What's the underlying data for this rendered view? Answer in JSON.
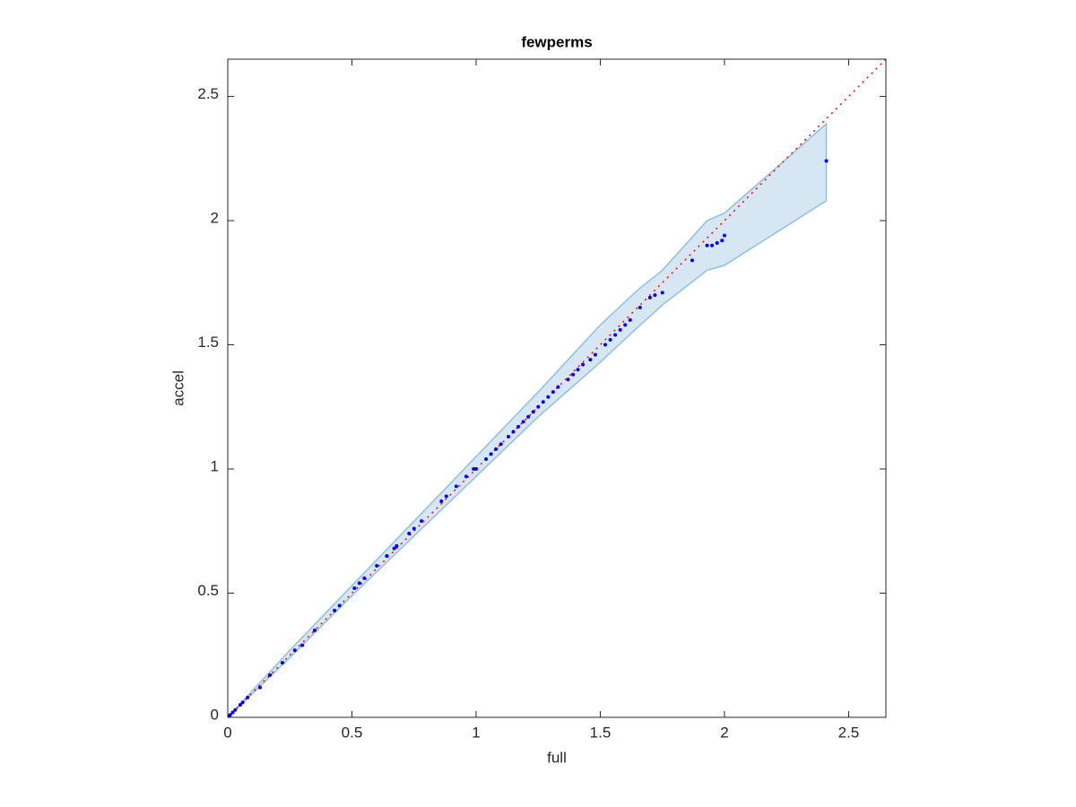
{
  "chart_data": {
    "type": "scatter",
    "title": "fewperms",
    "x_label": "full",
    "y_label": "accel",
    "xlim": [
      0,
      2.65
    ],
    "ylim": [
      0,
      2.65
    ],
    "xticks": [
      0,
      0.5,
      1,
      1.5,
      2,
      2.5
    ],
    "yticks": [
      0,
      0.5,
      1,
      1.5,
      2,
      2.5
    ],
    "band": {
      "color": "#d6e6f2",
      "edge_color": "#8fc0e0",
      "x": [
        0,
        0.25,
        0.5,
        0.75,
        1.0,
        1.25,
        1.5,
        1.65,
        1.75,
        1.93,
        2.0,
        2.41
      ],
      "upper": [
        0,
        0.27,
        0.53,
        0.79,
        1.05,
        1.31,
        1.58,
        1.72,
        1.8,
        2.0,
        2.03,
        2.39
      ],
      "lower": [
        0,
        0.24,
        0.49,
        0.73,
        0.97,
        1.21,
        1.43,
        1.57,
        1.66,
        1.8,
        1.82,
        2.08
      ]
    },
    "reference_line": {
      "color": "#ff0000",
      "x": [
        0,
        2.65
      ],
      "y": [
        0,
        2.65
      ]
    },
    "series": [
      {
        "color": "#0000ff",
        "x": [
          0.005,
          0.01,
          0.02,
          0.03,
          0.05,
          0.06,
          0.08,
          0.13,
          0.17,
          0.22,
          0.27,
          0.3,
          0.35,
          0.43,
          0.45,
          0.51,
          0.53,
          0.55,
          0.6,
          0.64,
          0.67,
          0.68,
          0.73,
          0.75,
          0.78,
          0.86,
          0.88,
          0.92,
          0.96,
          0.99,
          1.0,
          1.04,
          1.06,
          1.08,
          1.1,
          1.13,
          1.15,
          1.17,
          1.19,
          1.21,
          1.23,
          1.25,
          1.27,
          1.29,
          1.31,
          1.33,
          1.37,
          1.39,
          1.41,
          1.43,
          1.46,
          1.48,
          1.52,
          1.54,
          1.56,
          1.58,
          1.6,
          1.62,
          1.66,
          1.7,
          1.72,
          1.75,
          1.87,
          1.93,
          1.95,
          1.97,
          1.99,
          2.0,
          2.41
        ],
        "values": [
          0.005,
          0.01,
          0.02,
          0.03,
          0.05,
          0.06,
          0.08,
          0.12,
          0.17,
          0.22,
          0.27,
          0.29,
          0.35,
          0.43,
          0.45,
          0.52,
          0.54,
          0.56,
          0.61,
          0.65,
          0.68,
          0.69,
          0.74,
          0.76,
          0.79,
          0.87,
          0.89,
          0.93,
          0.97,
          1.0,
          1.0,
          1.04,
          1.06,
          1.08,
          1.1,
          1.13,
          1.15,
          1.17,
          1.19,
          1.21,
          1.23,
          1.25,
          1.27,
          1.29,
          1.31,
          1.33,
          1.36,
          1.38,
          1.4,
          1.42,
          1.44,
          1.46,
          1.5,
          1.52,
          1.54,
          1.56,
          1.58,
          1.6,
          1.65,
          1.69,
          1.7,
          1.71,
          1.84,
          1.9,
          1.9,
          1.91,
          1.92,
          1.94,
          2.24
        ]
      }
    ]
  }
}
